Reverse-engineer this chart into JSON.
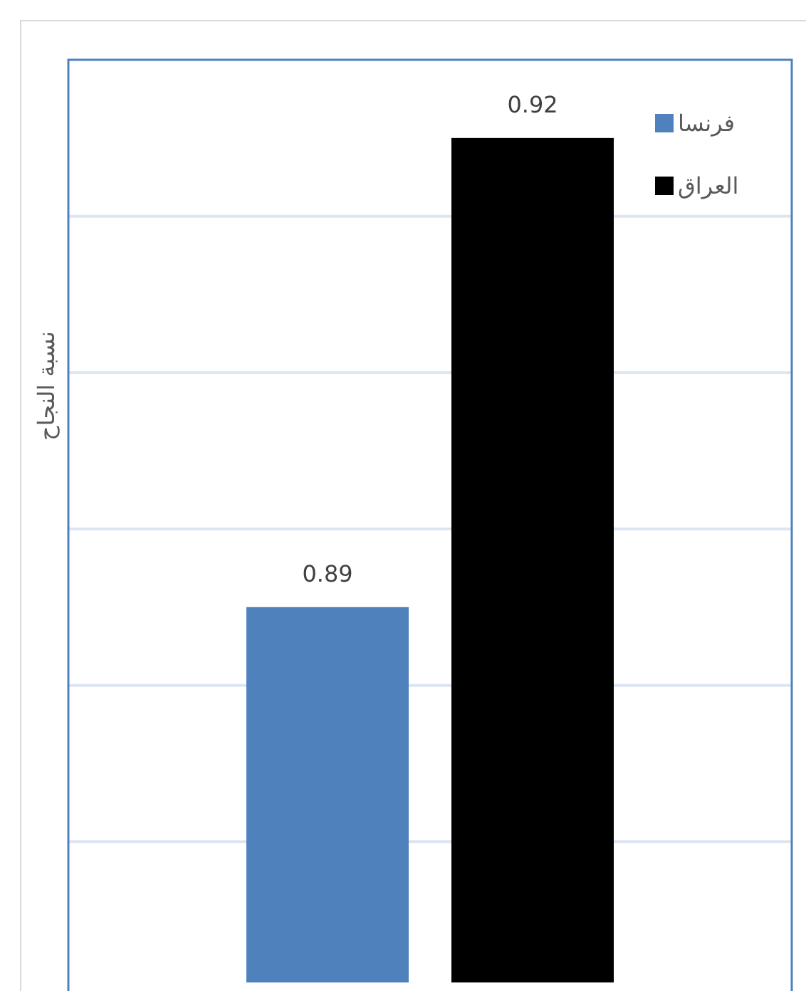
{
  "chart_data": {
    "type": "bar",
    "ylabel": "نسبة النجاح",
    "categories": [
      null
    ],
    "series": [
      {
        "name": "فرنسا",
        "color": "#4f81bd",
        "values": [
          0.89
        ]
      },
      {
        "name": "العراق",
        "color": "#000000",
        "values": [
          0.92
        ]
      }
    ],
    "ylim": [
      0.866,
      0.925
    ],
    "yticks": [
      {
        "value": 0.875,
        "label": null
      },
      {
        "value": 0.885,
        "label": null
      },
      {
        "value": 0.895,
        "label": null
      },
      {
        "value": 0.905,
        "label": null
      },
      {
        "value": 0.915,
        "label": null
      }
    ],
    "grid": "y",
    "legend": "top right",
    "data_labels": true
  }
}
